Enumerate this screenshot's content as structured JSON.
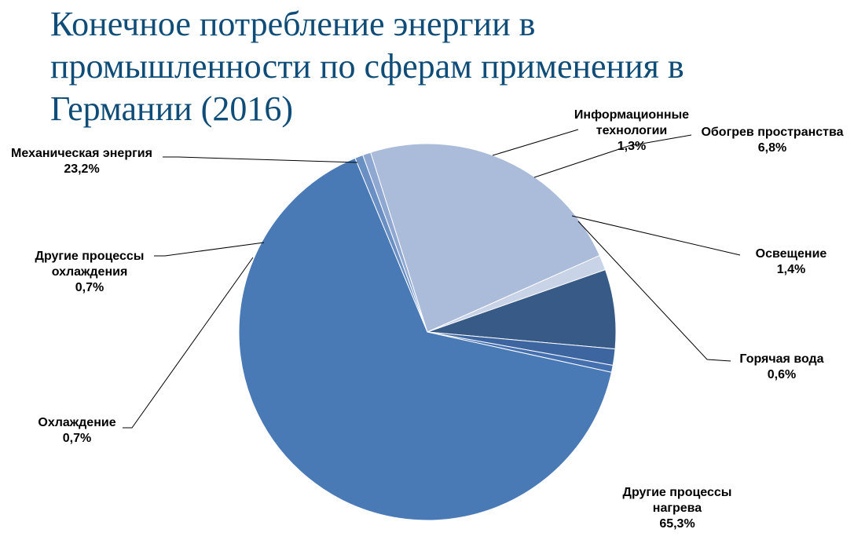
{
  "title": "Конечное потребление энергии в промышленности по сферам применения в Германии (2016)",
  "chart_data": {
    "type": "pie",
    "title": "Конечное потребление энергии в промышленности по сферам применения в Германии (2016)",
    "slices": [
      {
        "label": [
          "Информационные",
          "технологии"
        ],
        "value": 1.3,
        "value_text": "1,3%",
        "color": "#c9d3e7"
      },
      {
        "label": [
          "Обогрев пространства"
        ],
        "value": 6.8,
        "value_text": "6,8%",
        "color": "#375a86"
      },
      {
        "label": [
          "Освещение"
        ],
        "value": 1.4,
        "value_text": "1,4%",
        "color": "#3d659f"
      },
      {
        "label": [
          "Горячая вода"
        ],
        "value": 0.6,
        "value_text": "0,6%",
        "color": "#4470b0"
      },
      {
        "label": [
          "Другие процессы",
          "нагрева"
        ],
        "value": 65.3,
        "value_text": "65,3%",
        "color": "#4a7ab6"
      },
      {
        "label": [
          "Охлаждение"
        ],
        "value": 0.7,
        "value_text": "0,7%",
        "color": "#6a8fc3"
      },
      {
        "label": [
          "Другие процессы",
          "охлаждения"
        ],
        "value": 0.7,
        "value_text": "0,7%",
        "color": "#8ea8d2"
      },
      {
        "label": [
          "Механическая энергия"
        ],
        "value": 23.2,
        "value_text": "23,2%",
        "color": "#abbbda"
      }
    ],
    "unit": "%"
  }
}
